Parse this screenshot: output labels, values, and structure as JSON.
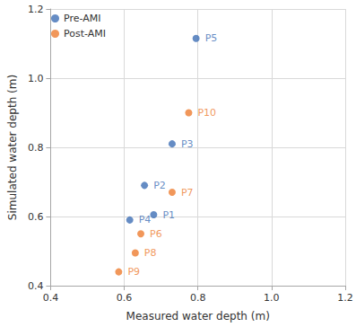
{
  "chart_data": {
    "type": "scatter",
    "x_label": "Measured water depth (m)",
    "y_label": "Simulated water depth (m)",
    "xlim": [
      0.4,
      1.2
    ],
    "xticks": [
      0.4,
      0.6,
      0.8,
      {
        "value": 1,
        "label": "1.0"
      },
      1.2
    ],
    "ylim": [
      0.4,
      1.2
    ],
    "yticks": [
      0.4,
      0.6,
      0.8,
      {
        "value": 1,
        "label": "1.0"
      },
      1.2
    ],
    "grid": true,
    "legend": "upper left",
    "series": [
      {
        "name": "Pre-AMI",
        "color": "#3e6fb5",
        "marker": "circle",
        "x": [
          0.68,
          0.655,
          0.73,
          0.615,
          0.795
        ],
        "values": [
          0.605,
          0.69,
          0.81,
          0.59,
          1.115
        ],
        "point_labels": [
          "P1",
          "P2",
          "P3",
          "P4",
          "P5"
        ]
      },
      {
        "name": "Post-AMI",
        "color": "#ed7d31",
        "marker": "circle",
        "x": [
          0.645,
          0.73,
          0.63,
          0.585,
          0.775
        ],
        "values": [
          0.55,
          0.67,
          0.495,
          0.44,
          0.9
        ],
        "point_labels": [
          "P6",
          "P7",
          "P8",
          "P9",
          "P10"
        ]
      }
    ]
  }
}
